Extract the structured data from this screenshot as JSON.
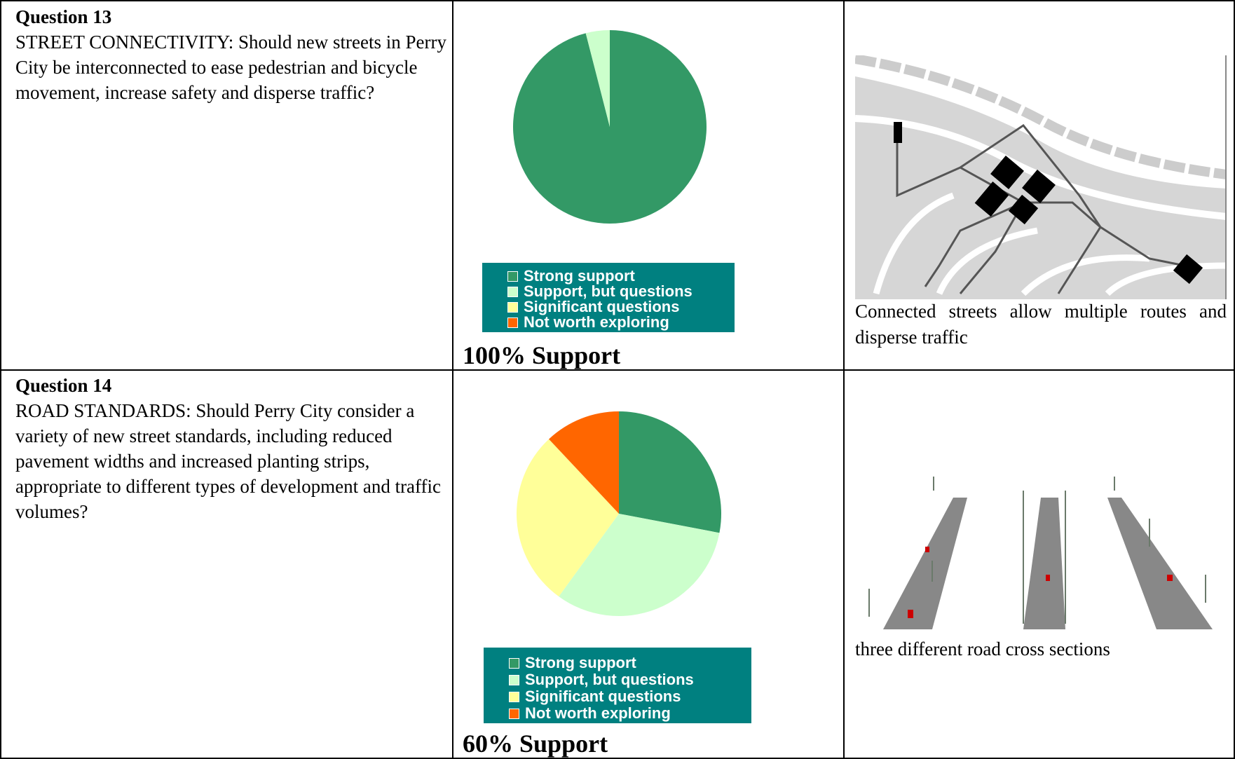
{
  "rows": [
    {
      "heading": "Question 13",
      "question": "STREET CONNECTIVITY: Should new streets in Perry City be interconnected to ease pedestrian and bicycle movement, increase safety and disperse traffic?",
      "result": "100% Support",
      "caption": "Connected streets allow multiple routes and disperse traffic"
    },
    {
      "heading": "Question 14",
      "question": "ROAD STANDARDS: Should Perry City consider a variety of new street standards, including reduced pavement widths and increased planting strips, appropriate to different types of development and traffic volumes?",
      "result": "60% Support",
      "caption": "three different road cross sections"
    }
  ],
  "chart_data": [
    {
      "type": "pie",
      "categories": [
        "Strong support",
        "Support, but questions",
        "Significant questions",
        "Not worth exploring"
      ],
      "values": [
        96,
        4,
        0,
        0
      ],
      "colors": [
        "#339966",
        "#ccffcc",
        "#ffff99",
        "#ff6600"
      ]
    },
    {
      "type": "pie",
      "categories": [
        "Strong support",
        "Support, but questions",
        "Significant questions",
        "Not worth exploring"
      ],
      "values": [
        28,
        32,
        28,
        12
      ],
      "colors": [
        "#339966",
        "#ccffcc",
        "#ffff99",
        "#ff6600"
      ]
    }
  ]
}
